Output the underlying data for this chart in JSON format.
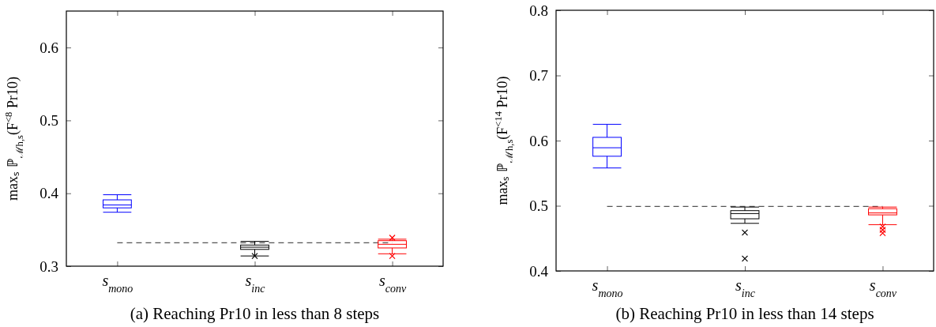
{
  "chart_data": [
    {
      "type": "box",
      "title": "(a) Reaching Pr10 in less than 8 steps",
      "ylabel": "maxₛ ℙ$_{ℳh,s}$(F$^{<8}$ Pr10)",
      "categories": [
        "s$_{mono}$",
        "s$_{inc}$",
        "s$_{conv}$"
      ],
      "colors": [
        "#0000ff",
        "#000000",
        "#ff0000"
      ],
      "boxes": [
        {
          "low": 0.374,
          "q1": 0.38,
          "median": 0.384,
          "q3": 0.391,
          "high": 0.398
        },
        {
          "low": 0.314,
          "q1": 0.323,
          "median": 0.326,
          "q3": 0.329,
          "high": 0.334,
          "outliers": [
            0.314
          ]
        },
        {
          "low": 0.317,
          "q1": 0.325,
          "median": 0.33,
          "q3": 0.335,
          "high": 0.337,
          "outliers": [
            0.339,
            0.314
          ]
        }
      ],
      "ylim": [
        0.3,
        0.65
      ],
      "yticks": [
        0.3,
        0.4,
        0.5,
        0.6
      ],
      "marker": "cross",
      "ref_lines": [
        {
          "axis": "y",
          "value": 0.332,
          "color": "#555555",
          "line_style": "dashed"
        }
      ]
    },
    {
      "type": "box",
      "title": "(b) Reaching Pr10 in less than 14 steps",
      "ylabel": "maxₛ ℙ$_{ℳh,s}$(F$^{<14}$ Pr10)",
      "categories": [
        "s$_{mono}$",
        "s$_{inc}$",
        "s$_{conv}$"
      ],
      "colors": [
        "#0000ff",
        "#000000",
        "#ff0000"
      ],
      "boxes": [
        {
          "low": 0.558,
          "q1": 0.576,
          "median": 0.589,
          "q3": 0.605,
          "high": 0.625
        },
        {
          "low": 0.473,
          "q1": 0.48,
          "median": 0.488,
          "q3": 0.4925,
          "high": 0.498,
          "outliers": [
            0.459,
            0.419
          ]
        },
        {
          "low": 0.471,
          "q1": 0.486,
          "median": 0.489,
          "q3": 0.4955,
          "high": 0.498,
          "outliers": [
            0.468,
            0.463,
            0.458
          ]
        }
      ],
      "ylim": [
        0.4,
        0.8
      ],
      "yticks": [
        0.4,
        0.5,
        0.6,
        0.7,
        0.8
      ],
      "marker": "cross",
      "ref_lines": [
        {
          "axis": "y",
          "value": 0.499,
          "color": "#555555",
          "line_style": "dashed"
        }
      ]
    }
  ]
}
